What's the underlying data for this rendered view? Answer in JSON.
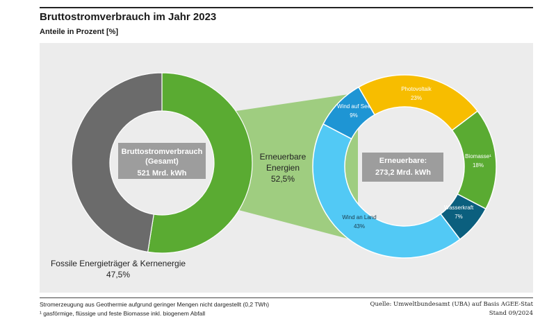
{
  "header": {
    "title": "Bruttostromverbrauch im Jahr 2023",
    "subtitle": "Anteile in Prozent [%]"
  },
  "footer": {
    "note_geothermie": "Stromerzeugung aus Geothermie aufgrund geringer Mengen nicht dargestellt (0,2 TWh)",
    "note_biomasse": "¹ gasförmige, flüssige und feste Biomasse inkl. biogenem Abfall",
    "source": "Quelle: Umweltbundesamt (UBA) auf Basis AGEE-Stat",
    "date": "Stand 09/2024"
  },
  "colors": {
    "panel": "#ececec",
    "fossil": "#6b6b6b",
    "renewable_total": "#5aab32",
    "connector": "#9fcd80",
    "center_box": "#9d9d9d",
    "wind_see": "#1e95d4",
    "photovoltaik": "#f7bd00",
    "biomasse": "#5aab32",
    "wasserkraft": "#0b5f7e",
    "wind_land": "#52c9f5"
  },
  "chart_data": [
    {
      "type": "pie",
      "variant": "donut",
      "title": "",
      "center_label": [
        "Bruttostromverbrauch",
        "(Gesamt)",
        "521 Mrd. kWh"
      ],
      "total": 521,
      "unit": "Mrd. kWh",
      "slices": [
        {
          "name": "Erneuerbare Energien",
          "label": [
            "Erneuerbare",
            "Energien"
          ],
          "value": 52.5,
          "value_label": "52,5%",
          "color": "#5aab32"
        },
        {
          "name": "Fossile Energieträger & Kernenergie",
          "label": [
            "Fossile Energieträger & Kernenergie"
          ],
          "value": 47.5,
          "value_label": "47,5%",
          "color": "#6b6b6b"
        }
      ]
    },
    {
      "type": "pie",
      "variant": "donut",
      "title": "",
      "center_label": [
        "Erneuerbare:",
        "273,2 Mrd. kWh"
      ],
      "total": 273.2,
      "unit": "Mrd. kWh",
      "slices": [
        {
          "name": "Photovoltaik",
          "label": "Photovoltaik",
          "value": 23,
          "value_label": "23%",
          "color": "#f7bd00"
        },
        {
          "name": "Biomasse¹",
          "label": "Biomasse¹",
          "value": 18,
          "value_label": "18%",
          "color": "#5aab32"
        },
        {
          "name": "Wasserkraft",
          "label": "Wasserkraft",
          "value": 7,
          "value_label": "7%",
          "color": "#0b5f7e"
        },
        {
          "name": "Wind an Land",
          "label": "Wind an Land",
          "value": 43,
          "value_label": "43%",
          "color": "#52c9f5"
        },
        {
          "name": "Wind auf See",
          "label": "Wind auf See",
          "value": 9,
          "value_label": "9%",
          "color": "#1e95d4"
        }
      ]
    }
  ]
}
